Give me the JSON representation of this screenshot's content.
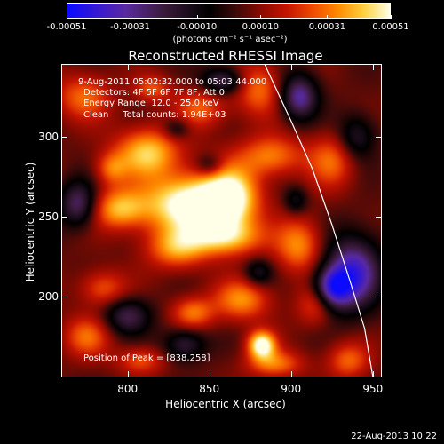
{
  "colorbar": {
    "tick_labels": [
      "-0.00051",
      "-0.00031",
      "-0.00010",
      "0.00010",
      "0.00031",
      "0.00051"
    ],
    "units": "(photons cm⁻² s⁻¹ asec⁻²)"
  },
  "title": "Reconstructed RHESSI Image",
  "overlay": {
    "time": "9-Aug-2011 05:02:32.000 to 05:03:44.000",
    "detectors": "Detectors: 4F 5F 6F 7F 8F, Att 0",
    "energy": "Energy Range: 12.0 - 25.0 keV",
    "clean": "Clean     Total counts: 1.94E+03",
    "peak": "Position of Peak = [838,258]"
  },
  "chart_data": {
    "type": "heatmap",
    "title": "Reconstructed RHESSI Image",
    "xlabel": "Heliocentric X (arcsec)",
    "ylabel": "Heliocentric Y (arcsec)",
    "xlim": [
      760,
      955
    ],
    "ylim": [
      150,
      345
    ],
    "x_ticks": [
      "800",
      "850",
      "900",
      "950"
    ],
    "y_ticks": [
      "200",
      "250",
      "300"
    ],
    "colorbar_range": [
      -0.00051,
      0.00051
    ],
    "peak": [
      838,
      258
    ],
    "grid": false,
    "limb_points": [
      [
        884,
        345
      ],
      [
        900,
        310
      ],
      [
        913,
        280
      ],
      [
        925,
        245
      ],
      [
        936,
        210
      ],
      [
        945,
        180
      ],
      [
        950,
        150
      ]
    ],
    "blobs": [
      {
        "x": 838,
        "y": 258,
        "sx": 20,
        "sy": 13,
        "v": 1.0
      },
      {
        "x": 812,
        "y": 290,
        "sx": 14,
        "sy": 11,
        "v": 0.72
      },
      {
        "x": 863,
        "y": 262,
        "sx": 12,
        "sy": 14,
        "v": 0.78
      },
      {
        "x": 795,
        "y": 255,
        "sx": 12,
        "sy": 9,
        "v": 0.62
      },
      {
        "x": 860,
        "y": 237,
        "sx": 16,
        "sy": 8,
        "v": 0.64
      },
      {
        "x": 830,
        "y": 230,
        "sx": 13,
        "sy": 9,
        "v": 0.55
      },
      {
        "x": 888,
        "y": 288,
        "sx": 14,
        "sy": 9,
        "v": 0.52
      },
      {
        "x": 773,
        "y": 325,
        "sx": 12,
        "sy": 10,
        "v": 0.46
      },
      {
        "x": 880,
        "y": 330,
        "sx": 10,
        "sy": 12,
        "v": 0.48
      },
      {
        "x": 845,
        "y": 318,
        "sx": 11,
        "sy": 9,
        "v": 0.42
      },
      {
        "x": 905,
        "y": 232,
        "sx": 10,
        "sy": 12,
        "v": 0.55
      },
      {
        "x": 870,
        "y": 198,
        "sx": 12,
        "sy": 9,
        "v": 0.55
      },
      {
        "x": 882,
        "y": 170,
        "sx": 6,
        "sy": 6,
        "v": 0.95
      },
      {
        "x": 890,
        "y": 158,
        "sx": 12,
        "sy": 6,
        "v": 0.5
      },
      {
        "x": 840,
        "y": 190,
        "sx": 9,
        "sy": 7,
        "v": 0.5
      },
      {
        "x": 785,
        "y": 205,
        "sx": 10,
        "sy": 8,
        "v": 0.42
      },
      {
        "x": 775,
        "y": 175,
        "sx": 10,
        "sy": 9,
        "v": 0.45
      },
      {
        "x": 925,
        "y": 285,
        "sx": 10,
        "sy": 12,
        "v": 0.45
      },
      {
        "x": 915,
        "y": 195,
        "sx": 8,
        "sy": 9,
        "v": 0.4
      },
      {
        "x": 808,
        "y": 160,
        "sx": 10,
        "sy": 6,
        "v": 0.4
      },
      {
        "x": 935,
        "y": 160,
        "sx": 9,
        "sy": 8,
        "v": 0.45
      },
      {
        "x": 790,
        "y": 280,
        "sx": 7,
        "sy": 7,
        "v": 0.4
      },
      {
        "x": 815,
        "y": 330,
        "sx": 8,
        "sy": 6,
        "v": 0.4
      },
      {
        "x": 905,
        "y": 325,
        "sx": 8,
        "sy": 10,
        "v": -0.75
      },
      {
        "x": 938,
        "y": 215,
        "sx": 12,
        "sy": 16,
        "v": -0.9
      },
      {
        "x": 925,
        "y": 205,
        "sx": 8,
        "sy": 9,
        "v": -0.8
      },
      {
        "x": 770,
        "y": 258,
        "sx": 8,
        "sy": 10,
        "v": -0.65
      },
      {
        "x": 858,
        "y": 335,
        "sx": 9,
        "sy": 6,
        "v": -0.6
      },
      {
        "x": 800,
        "y": 188,
        "sx": 10,
        "sy": 8,
        "v": -0.55
      },
      {
        "x": 835,
        "y": 170,
        "sx": 9,
        "sy": 7,
        "v": -0.5
      },
      {
        "x": 940,
        "y": 300,
        "sx": 8,
        "sy": 10,
        "v": -0.45
      },
      {
        "x": 880,
        "y": 215,
        "sx": 6,
        "sy": 6,
        "v": -0.4
      },
      {
        "x": 850,
        "y": 282,
        "sx": 6,
        "sy": 5,
        "v": -0.35
      },
      {
        "x": 903,
        "y": 260,
        "sx": 5,
        "sy": 6,
        "v": -0.35
      },
      {
        "x": 830,
        "y": 305,
        "sx": 6,
        "sy": 5,
        "v": -0.35
      }
    ]
  },
  "footer": "22-Aug-2013 10:22"
}
